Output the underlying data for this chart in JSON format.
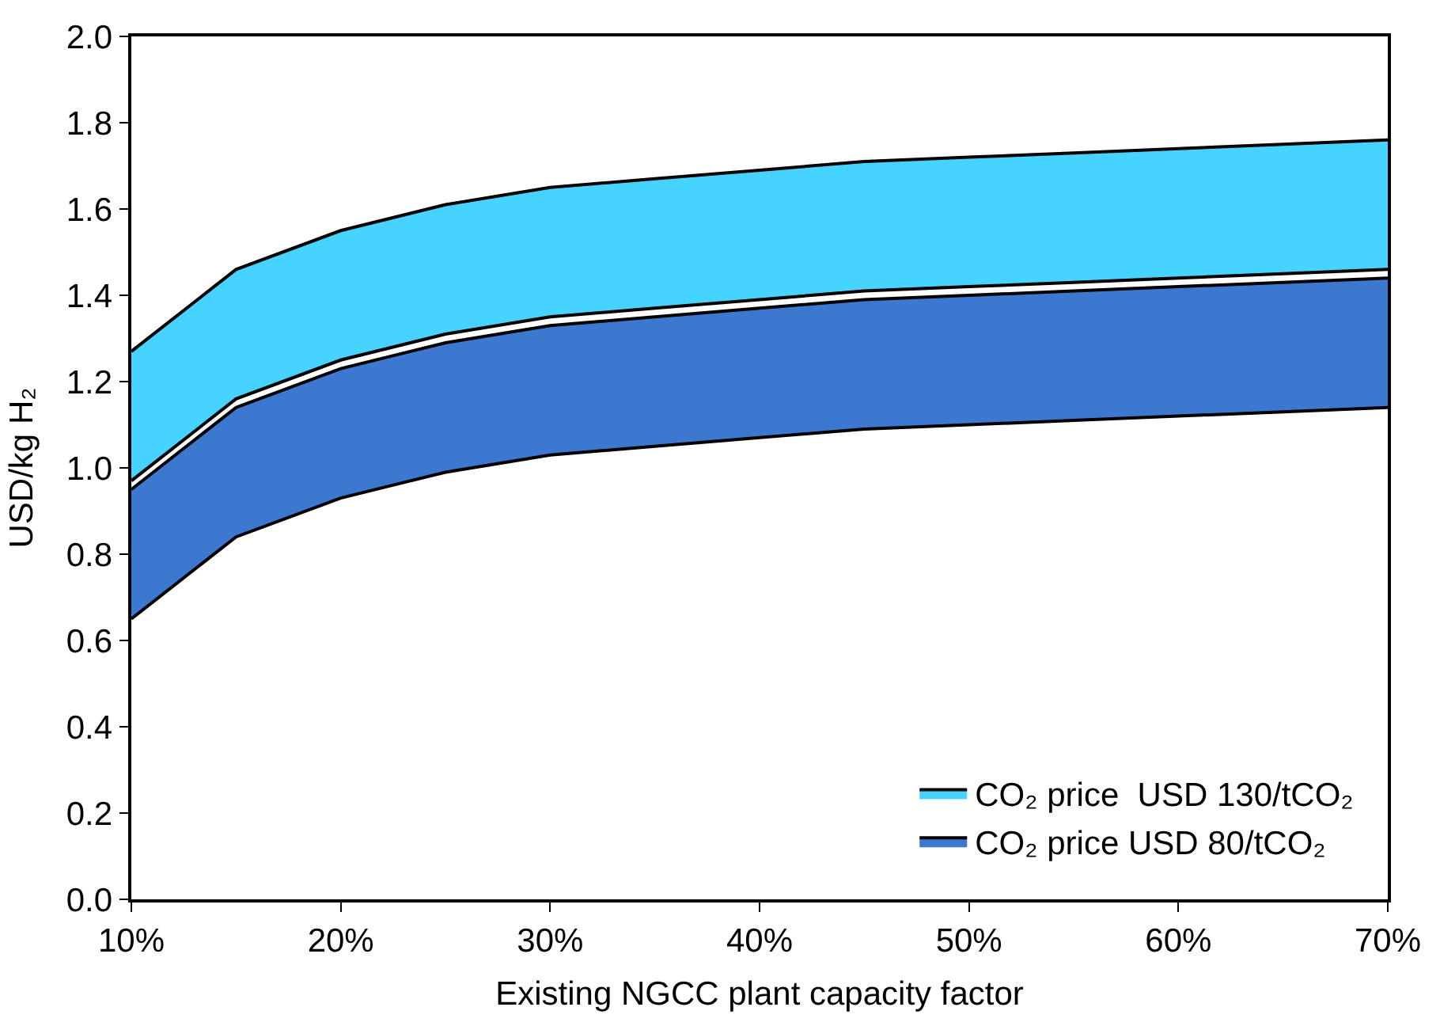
{
  "chart_data": {
    "type": "area",
    "xlabel": "Existing NGCC plant capacity factor",
    "ylabel": "USD/kg H₂",
    "x": [
      10,
      15,
      20,
      25,
      30,
      35,
      40,
      45,
      50,
      55,
      60,
      65,
      70
    ],
    "series": [
      {
        "type": "line",
        "color": "#000000",
        "values": [
          0.97,
          1.16,
          1.25,
          1.31,
          1.35,
          1.37,
          1.39,
          1.41,
          1.42,
          1.43,
          1.44,
          1.45,
          1.46
        ]
      },
      {
        "name": "CO₂ price  USD 130/tCO₂",
        "color": "#47d3ff",
        "values": [
          1.27,
          1.46,
          1.55,
          1.61,
          1.65,
          1.67,
          1.69,
          1.71,
          1.72,
          1.73,
          1.74,
          1.75,
          1.76
        ]
      },
      {
        "type": "line",
        "color": "#000000",
        "values": [
          0.65,
          0.84,
          0.93,
          0.99,
          1.03,
          1.05,
          1.07,
          1.09,
          1.1,
          1.11,
          1.12,
          1.13,
          1.14
        ]
      },
      {
        "name": "CO₂ price USD 80/tCO₂",
        "color": "#3c78d0",
        "values": [
          0.95,
          1.14,
          1.23,
          1.29,
          1.33,
          1.35,
          1.37,
          1.39,
          1.4,
          1.41,
          1.42,
          1.43,
          1.44
        ]
      }
    ],
    "xlim": [
      10,
      70
    ],
    "xticks": [
      {
        "value": 10,
        "label": "10%"
      },
      {
        "value": 20,
        "label": "20%"
      },
      {
        "value": 30,
        "label": "30%"
      },
      {
        "value": 40,
        "label": "40%"
      },
      {
        "value": 50,
        "label": "50%"
      },
      {
        "value": 60,
        "label": "60%"
      },
      {
        "value": 70,
        "label": "70%"
      }
    ],
    "ylim": [
      0,
      2
    ],
    "yticks": [
      {
        "value": 0,
        "label": "0.0"
      },
      {
        "value": 0.2,
        "label": "0.2"
      },
      {
        "value": 0.4,
        "label": "0.4"
      },
      {
        "value": 0.6,
        "label": "0.6"
      },
      {
        "value": 0.8,
        "label": "0.8"
      },
      {
        "value": 1.0,
        "label": "1.0"
      },
      {
        "value": 1.2,
        "label": "1.2"
      },
      {
        "value": 1.4,
        "label": "1.4"
      },
      {
        "value": 1.6,
        "label": "1.6"
      },
      {
        "value": 1.8,
        "label": "1.8"
      },
      {
        "value": 2.0,
        "label": "2.0"
      }
    ],
    "legend": "bottom right"
  }
}
